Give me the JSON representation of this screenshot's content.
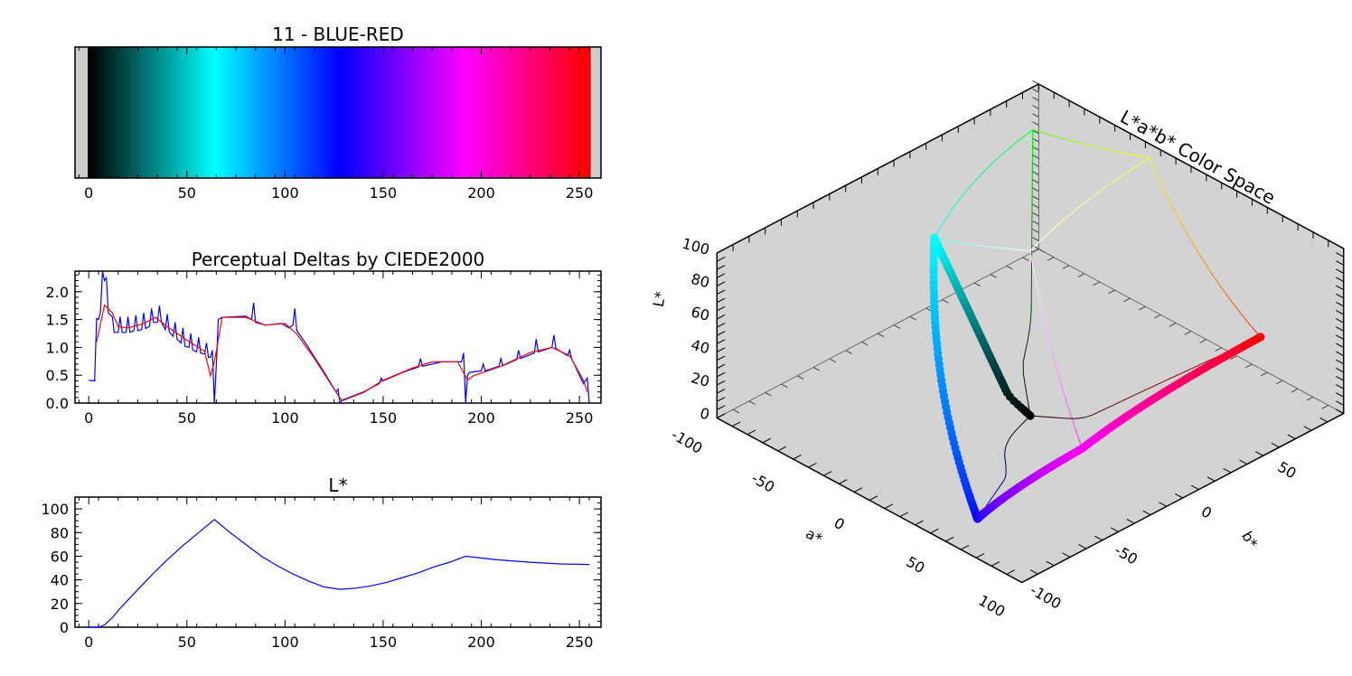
{
  "chart_data": [
    {
      "type": "colorbar",
      "title": "11 - BLUE-RED",
      "xlim": [
        -7,
        261
      ],
      "xticks": [
        0,
        50,
        100,
        150,
        200,
        250
      ],
      "pad_color": "#cccccc",
      "colormap_anchors": [
        {
          "index": 0,
          "color": "#000000"
        },
        {
          "index": 64,
          "color": "#00ffff"
        },
        {
          "index": 128,
          "color": "#0000ff"
        },
        {
          "index": 192,
          "color": "#ff00ff"
        },
        {
          "index": 255,
          "color": "#ff0000"
        }
      ]
    },
    {
      "type": "line",
      "title": "Perceptual Deltas by CIEDE2000",
      "xlim": [
        -7,
        261
      ],
      "ylim": [
        0,
        2.37
      ],
      "xticks": [
        0,
        50,
        100,
        150,
        200,
        250
      ],
      "yticks": [
        "0.0",
        "0.5",
        "1.0",
        "1.5",
        "2.0"
      ],
      "series": [
        {
          "color": "#0000ff",
          "points": [
            [
              0,
              0.41
            ],
            [
              3,
              0.4
            ],
            [
              4,
              1.52
            ],
            [
              5,
              1.5
            ],
            [
              6,
              1.65
            ],
            [
              7,
              2.37
            ],
            [
              8,
              2.2
            ],
            [
              9,
              2.25
            ],
            [
              10,
              1.62
            ],
            [
              12,
              1.55
            ],
            [
              13,
              1.27
            ],
            [
              15,
              1.27
            ],
            [
              16,
              1.55
            ],
            [
              17,
              1.27
            ],
            [
              19,
              1.27
            ],
            [
              20,
              1.55
            ],
            [
              21,
              1.27
            ],
            [
              23,
              1.3
            ],
            [
              24,
              1.58
            ],
            [
              25,
              1.3
            ],
            [
              27,
              1.32
            ],
            [
              28,
              1.62
            ],
            [
              29,
              1.34
            ],
            [
              31,
              1.38
            ],
            [
              32,
              1.7
            ],
            [
              33,
              1.45
            ],
            [
              35,
              1.45
            ],
            [
              36,
              1.75
            ],
            [
              37,
              1.45
            ],
            [
              39,
              1.32
            ],
            [
              40,
              1.6
            ],
            [
              41,
              1.28
            ],
            [
              43,
              1.2
            ],
            [
              44,
              1.45
            ],
            [
              45,
              1.15
            ],
            [
              47,
              1.08
            ],
            [
              48,
              1.35
            ],
            [
              49,
              1.02
            ],
            [
              51,
              1.0
            ],
            [
              52,
              1.25
            ],
            [
              53,
              0.95
            ],
            [
              55,
              0.92
            ],
            [
              56,
              1.18
            ],
            [
              57,
              0.9
            ],
            [
              59,
              0.88
            ],
            [
              60,
              1.08
            ],
            [
              61,
              0.82
            ],
            [
              62,
              0.82
            ],
            [
              63,
              0.95
            ],
            [
              64,
              0.0
            ],
            [
              65,
              0.7
            ],
            [
              66,
              1.5
            ],
            [
              68,
              1.54
            ],
            [
              80,
              1.56
            ],
            [
              83,
              1.5
            ],
            [
              84,
              1.8
            ],
            [
              85,
              1.45
            ],
            [
              90,
              1.4
            ],
            [
              98,
              1.43
            ],
            [
              102,
              1.35
            ],
            [
              104,
              1.4
            ],
            [
              105,
              1.7
            ],
            [
              106,
              1.3
            ],
            [
              110,
              1.1
            ],
            [
              120,
              0.55
            ],
            [
              126,
              0.2
            ],
            [
              127,
              0.25
            ],
            [
              128,
              0.0
            ],
            [
              129,
              0.05
            ],
            [
              140,
              0.2
            ],
            [
              148,
              0.35
            ],
            [
              149,
              0.45
            ],
            [
              150,
              0.4
            ],
            [
              160,
              0.55
            ],
            [
              168,
              0.65
            ],
            [
              169,
              0.8
            ],
            [
              170,
              0.66
            ],
            [
              180,
              0.74
            ],
            [
              190,
              0.74
            ],
            [
              191,
              0.9
            ],
            [
              192,
              0.0
            ],
            [
              193,
              0.5
            ],
            [
              194,
              0.55
            ],
            [
              200,
              0.58
            ],
            [
              201,
              0.7
            ],
            [
              202,
              0.58
            ],
            [
              209,
              0.66
            ],
            [
              210,
              0.8
            ],
            [
              211,
              0.67
            ],
            [
              218,
              0.78
            ],
            [
              219,
              0.95
            ],
            [
              220,
              0.8
            ],
            [
              227,
              0.9
            ],
            [
              228,
              1.15
            ],
            [
              229,
              0.92
            ],
            [
              236,
              1.0
            ],
            [
              237,
              1.22
            ],
            [
              238,
              0.98
            ],
            [
              244,
              0.85
            ],
            [
              245,
              0.95
            ],
            [
              246,
              0.8
            ],
            [
              252,
              0.35
            ],
            [
              254,
              0.45
            ],
            [
              255,
              0.0
            ]
          ]
        },
        {
          "color": "#ff0000",
          "points": [
            [
              4,
              1.1
            ],
            [
              8,
              1.76
            ],
            [
              12,
              1.62
            ],
            [
              15,
              1.37
            ],
            [
              20,
              1.35
            ],
            [
              28,
              1.43
            ],
            [
              34,
              1.54
            ],
            [
              40,
              1.37
            ],
            [
              50,
              1.13
            ],
            [
              59,
              0.93
            ],
            [
              62,
              0.49
            ],
            [
              64,
              0.74
            ],
            [
              68,
              1.54
            ],
            [
              80,
              1.54
            ],
            [
              90,
              1.4
            ],
            [
              100,
              1.43
            ],
            [
              106,
              1.24
            ],
            [
              115,
              0.8
            ],
            [
              125,
              0.25
            ],
            [
              129,
              0.04
            ],
            [
              140,
              0.19
            ],
            [
              150,
              0.41
            ],
            [
              165,
              0.63
            ],
            [
              175,
              0.74
            ],
            [
              188,
              0.74
            ],
            [
              193,
              0.41
            ],
            [
              196,
              0.49
            ],
            [
              210,
              0.66
            ],
            [
              225,
              0.91
            ],
            [
              236,
              1.0
            ],
            [
              245,
              0.85
            ],
            [
              252,
              0.41
            ],
            [
              254,
              0.2
            ]
          ]
        }
      ]
    },
    {
      "type": "line",
      "title": "L*",
      "xlim": [
        -7,
        261
      ],
      "ylim": [
        0,
        110
      ],
      "xticks": [
        0,
        50,
        100,
        150,
        200,
        250
      ],
      "yticks": [
        0,
        20,
        40,
        60,
        80,
        100
      ],
      "series": [
        {
          "color": "#0000ff",
          "points": [
            [
              0,
              0
            ],
            [
              5,
              0
            ],
            [
              8,
              2
            ],
            [
              12,
              8
            ],
            [
              16,
              16
            ],
            [
              24,
              30
            ],
            [
              32,
              44
            ],
            [
              40,
              57
            ],
            [
              48,
              69
            ],
            [
              56,
              80
            ],
            [
              64,
              91
            ],
            [
              72,
              80
            ],
            [
              80,
              70
            ],
            [
              88,
              60
            ],
            [
              96,
              52
            ],
            [
              104,
              45
            ],
            [
              112,
              39
            ],
            [
              120,
              34
            ],
            [
              128,
              32
            ],
            [
              136,
              33
            ],
            [
              144,
              35
            ],
            [
              152,
              38
            ],
            [
              160,
              42
            ],
            [
              168,
              46
            ],
            [
              176,
              51
            ],
            [
              184,
              55
            ],
            [
              192,
              60
            ],
            [
              208,
              57
            ],
            [
              224,
              55
            ],
            [
              240,
              53.5
            ],
            [
              255,
              53
            ]
          ]
        }
      ]
    },
    {
      "type": "scatter3d",
      "title": "L*a*b* Color Space",
      "xlabel": "a*",
      "ylabel": "b*",
      "zlabel": "L*",
      "a_ticks": [
        -100,
        -50,
        0,
        50,
        100
      ],
      "b_ticks": [
        -100,
        -50,
        0,
        50,
        100
      ],
      "L_ticks": [
        0,
        20,
        40,
        60,
        80,
        100
      ],
      "box_color": "#d3d3d3",
      "points_source": "colormap",
      "gamut_edges": [
        [
          "#00ffff",
          "#00ff00"
        ],
        [
          "#00ff00",
          "#ffff00"
        ],
        [
          "#ffff00",
          "#ff0000"
        ],
        [
          "#00ff00",
          "#000000"
        ],
        [
          "#ffffff",
          "#ffff00"
        ],
        [
          "#ffffff",
          "#00ffff"
        ],
        [
          "#ffffff",
          "#ff00ff"
        ],
        [
          "#000000",
          "#ff0000"
        ],
        [
          "#000000",
          "#0000ff"
        ]
      ]
    }
  ]
}
